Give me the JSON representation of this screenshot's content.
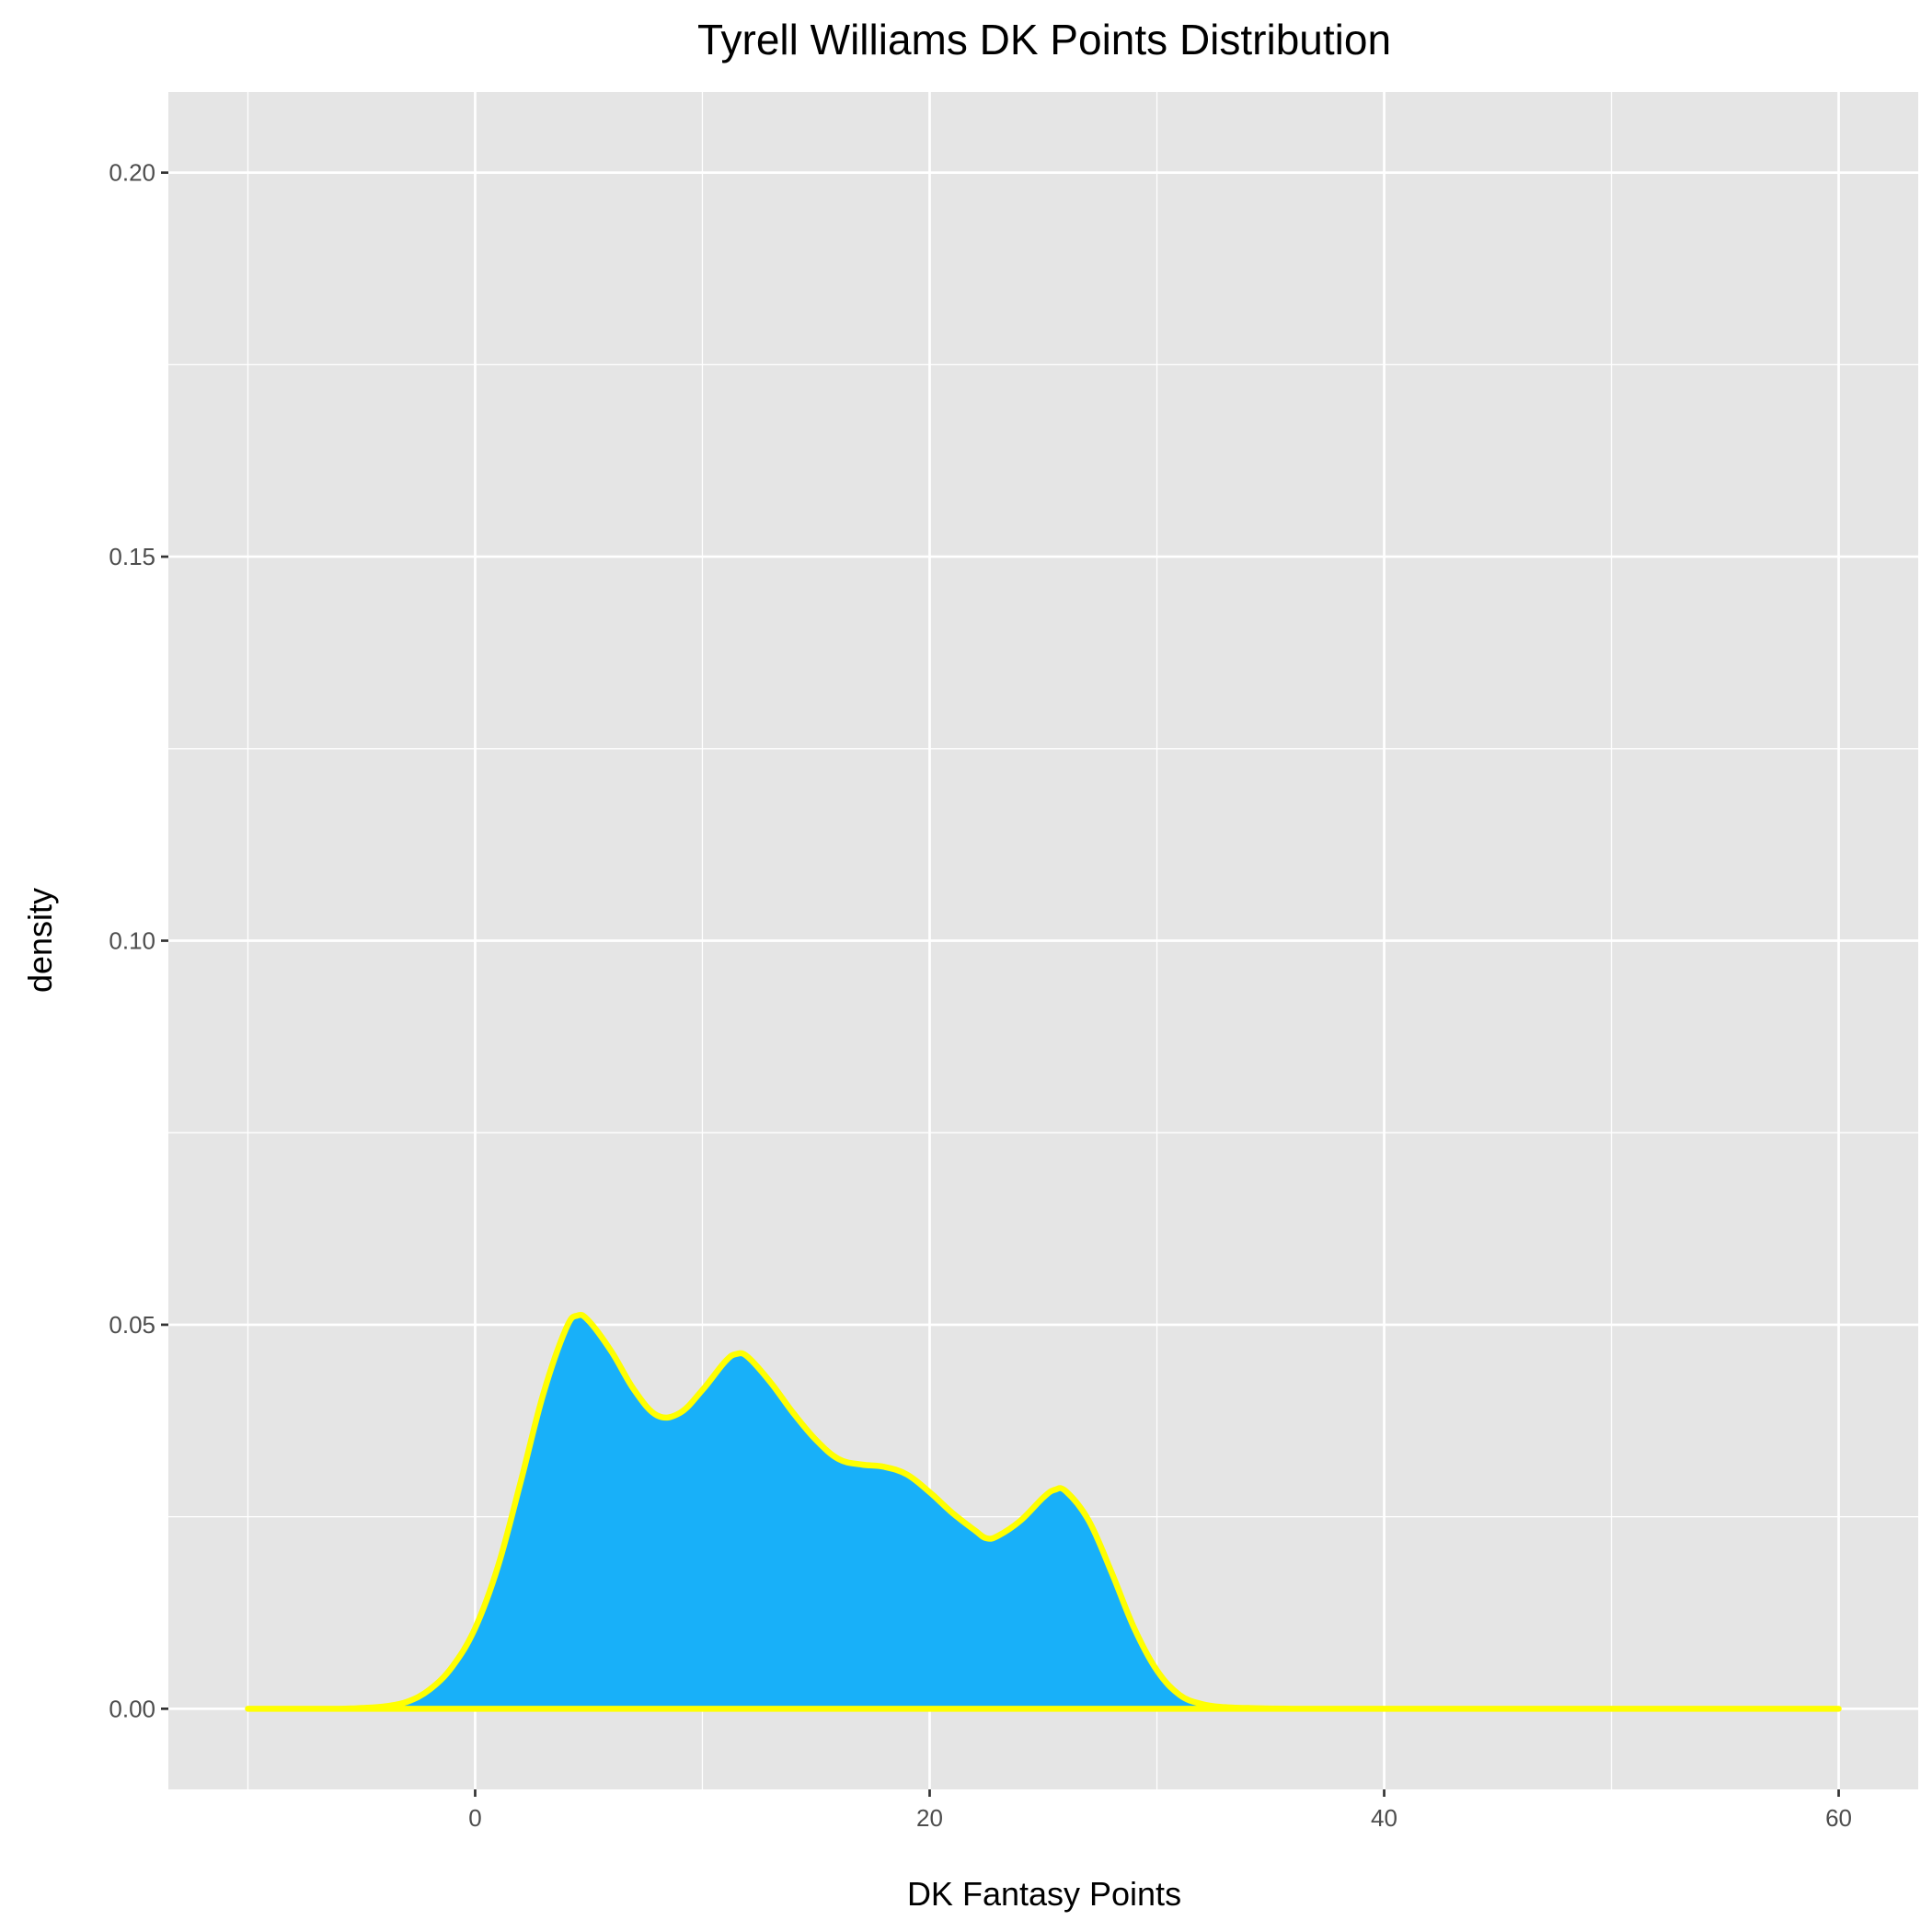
{
  "chart_data": {
    "type": "area",
    "title": "Tyrell Williams DK Points Distribution",
    "xlabel": "DK Fantasy Points",
    "ylabel": "density",
    "xlim": [
      -13.5,
      63.5
    ],
    "ylim": [
      -0.0105,
      0.2105
    ],
    "x_ticks": [
      0,
      20,
      40,
      60
    ],
    "x_tick_labels": [
      "0",
      "20",
      "40",
      "60"
    ],
    "y_ticks": [
      0.0,
      0.05,
      0.1,
      0.15,
      0.2
    ],
    "y_tick_labels": [
      "0.00",
      "0.05",
      "0.10",
      "0.15",
      "0.20"
    ],
    "grid": true,
    "legend": "none",
    "series": [
      {
        "x": [
          -10,
          -8,
          -6,
          -5,
          -4,
          -3,
          -2,
          -1,
          0,
          1,
          2,
          3,
          4,
          4.5,
          5,
          6,
          7,
          8,
          9,
          10,
          11,
          11.5,
          12,
          13,
          14,
          15,
          16,
          17,
          18,
          19,
          20,
          21,
          22,
          22.5,
          23,
          24,
          25,
          25.5,
          26,
          27,
          28,
          29,
          30,
          31,
          32,
          33,
          34,
          36,
          40,
          50,
          60
        ],
        "y": [
          0.0,
          0.0,
          0.0,
          0.0001,
          0.0003,
          0.0009,
          0.0025,
          0.0055,
          0.0105,
          0.0185,
          0.0295,
          0.041,
          0.0495,
          0.0512,
          0.0505,
          0.0465,
          0.0415,
          0.0382,
          0.0385,
          0.0415,
          0.0452,
          0.0462,
          0.0458,
          0.0425,
          0.0385,
          0.035,
          0.0325,
          0.0318,
          0.0315,
          0.0305,
          0.0282,
          0.0255,
          0.0232,
          0.0222,
          0.0225,
          0.0245,
          0.0275,
          0.0285,
          0.0283,
          0.0245,
          0.0178,
          0.0105,
          0.005,
          0.0018,
          0.0006,
          0.0002,
          0.0001,
          0.0,
          0.0,
          0.0,
          0.0
        ]
      }
    ],
    "colors": {
      "fill": "#18b0f9",
      "outline": "#ffff00",
      "panel_background": "#e5e5e5",
      "grid": "#ffffff",
      "tick_label": "#4d4d4d",
      "axis_tick": "#333333"
    }
  }
}
